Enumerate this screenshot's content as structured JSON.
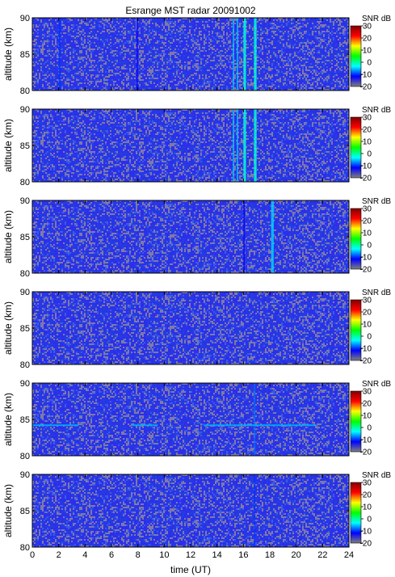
{
  "chart_data": {
    "type": "heatmap",
    "title": "Esrange MST radar 20091002",
    "xlabel": "time (UT)",
    "ylabel": "altitude (km)",
    "xlim": [
      0,
      24
    ],
    "ylim": [
      80,
      90
    ],
    "x_ticks": [
      "0",
      "2",
      "4",
      "6",
      "8",
      "10",
      "12",
      "14",
      "16",
      "18",
      "20",
      "22",
      "24"
    ],
    "y_ticks": [
      "80",
      "85",
      "90"
    ],
    "colorbar": {
      "label": "SNR dB",
      "range": [
        -20,
        30
      ],
      "ticks": [
        "30",
        "20",
        "10",
        "0",
        "-10",
        "-20"
      ],
      "colors": [
        "#7f7f7f",
        "#0000ff",
        "#00ffff",
        "#00ff00",
        "#ffff00",
        "#ff0000",
        "#800000"
      ]
    },
    "panels": [
      {
        "features": [
          {
            "type": "vband",
            "t_start": 2.0,
            "t_end": 2.15,
            "snr": -10
          },
          {
            "type": "vband",
            "t_start": 7.9,
            "t_end": 8.0,
            "snr": -12
          },
          {
            "type": "vband",
            "t_start": 15.2,
            "t_end": 15.3,
            "snr": -5
          },
          {
            "type": "vband",
            "t_start": 15.5,
            "t_end": 15.6,
            "snr": -5
          },
          {
            "type": "vband",
            "t_start": 16.0,
            "t_end": 16.2,
            "snr": -2
          },
          {
            "type": "vband",
            "t_start": 16.8,
            "t_end": 17.0,
            "snr": -2
          }
        ]
      },
      {
        "features": [
          {
            "type": "vband",
            "t_start": 15.2,
            "t_end": 15.3,
            "snr": -5
          },
          {
            "type": "vband",
            "t_start": 15.5,
            "t_end": 15.6,
            "snr": -5
          },
          {
            "type": "vband",
            "t_start": 16.0,
            "t_end": 16.2,
            "snr": -2
          },
          {
            "type": "vband",
            "t_start": 16.8,
            "t_end": 17.0,
            "snr": -2
          }
        ]
      },
      {
        "features": [
          {
            "type": "vband",
            "t_start": 16.0,
            "t_end": 16.1,
            "snr": -12
          },
          {
            "type": "vband",
            "t_start": 18.1,
            "t_end": 18.3,
            "snr": -5
          }
        ]
      },
      {
        "features": []
      },
      {
        "features": [
          {
            "type": "vband",
            "t_start": 16.8,
            "t_end": 16.9,
            "snr": -8
          },
          {
            "type": "hline",
            "alt": 84.2,
            "t_start": 0,
            "t_end": 3.5,
            "snr": -6
          },
          {
            "type": "hline",
            "alt": 84.2,
            "t_start": 7.5,
            "t_end": 9.5,
            "snr": -6
          },
          {
            "type": "hline",
            "alt": 84.2,
            "t_start": 13,
            "t_end": 21.5,
            "snr": -6
          }
        ]
      },
      {
        "features": [
          {
            "type": "vband",
            "t_start": 16.8,
            "t_end": 16.9,
            "snr": -10
          }
        ]
      }
    ]
  }
}
